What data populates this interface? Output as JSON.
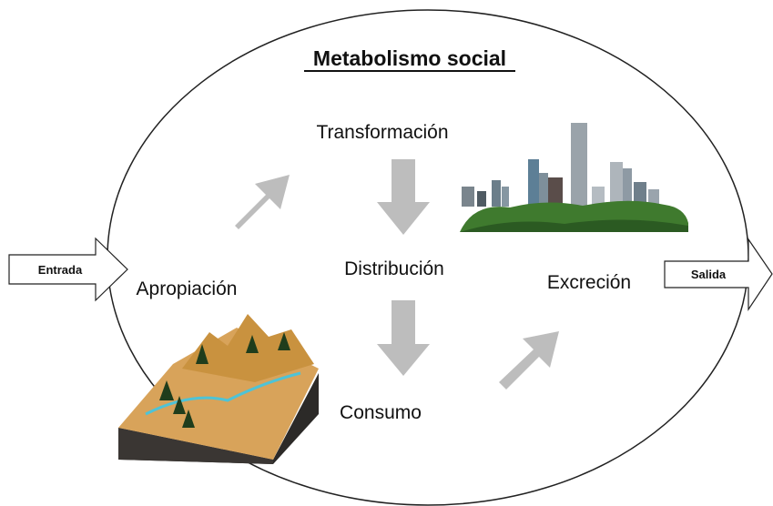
{
  "title": "Metabolismo social",
  "stages": {
    "appropriation": "Apropiación",
    "transformation": "Transformación",
    "distribution": "Distribución",
    "consumption": "Consumo",
    "excretion": "Excreción"
  },
  "input": "Entrada",
  "output": "Salida"
}
